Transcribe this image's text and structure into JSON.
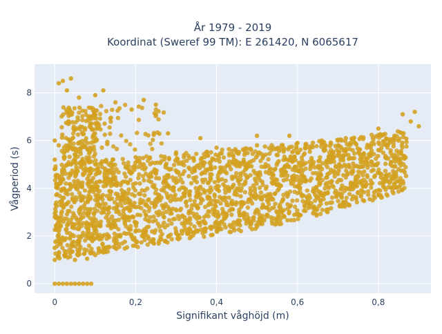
{
  "chart_data": {
    "type": "scatter",
    "title": [
      "År 1979 - 2019",
      "Koordinat (Sweref 99 TM): E 261420, N 6065617"
    ],
    "xlabel": "Signifikant våghöjd (m)",
    "ylabel": "Vågperiod (s)",
    "xlim": [
      -0.05,
      0.93
    ],
    "ylim": [
      -0.4,
      9.2
    ],
    "x_ticks": [
      0,
      0.2,
      0.4,
      0.6,
      0.8
    ],
    "x_tick_labels": [
      "0",
      "0,2",
      "0,4",
      "0,6",
      "0,8"
    ],
    "y_ticks": [
      0,
      2,
      4,
      6,
      8
    ],
    "y_tick_labels": [
      "0",
      "2",
      "4",
      "6",
      "8"
    ],
    "grid": true,
    "legend": "none",
    "marker_color": "#d4a120",
    "plot_background": "#e5ecf6",
    "series": [
      {
        "points": [
          [
            0.0,
            0.0
          ],
          [
            0.01,
            0.0
          ],
          [
            0.02,
            0.0
          ],
          [
            0.03,
            0.0
          ],
          [
            0.04,
            0.0
          ],
          [
            0.05,
            0.0
          ],
          [
            0.06,
            0.0
          ],
          [
            0.07,
            0.0
          ],
          [
            0.08,
            0.0
          ],
          [
            0.09,
            0.0
          ],
          [
            0.0,
            1.0
          ],
          [
            0.0,
            1.5
          ],
          [
            0.0,
            4.8
          ],
          [
            0.0,
            5.2
          ],
          [
            0.0,
            6.0
          ],
          [
            0.01,
            5.8
          ],
          [
            0.01,
            4.5
          ],
          [
            0.01,
            8.4
          ],
          [
            0.02,
            8.5
          ],
          [
            0.03,
            8.1
          ],
          [
            0.04,
            8.6
          ],
          [
            0.06,
            7.8
          ],
          [
            0.1,
            7.9
          ],
          [
            0.12,
            8.1
          ],
          [
            0.15,
            7.6
          ],
          [
            0.19,
            7.3
          ],
          [
            0.22,
            7.7
          ],
          [
            0.25,
            7.5
          ],
          [
            0.05,
            1.0
          ],
          [
            0.08,
            1.05
          ],
          [
            0.1,
            1.2
          ],
          [
            0.15,
            1.5
          ],
          [
            0.2,
            1.8
          ],
          [
            0.3,
            2.2
          ],
          [
            0.4,
            2.6
          ],
          [
            0.5,
            3.1
          ],
          [
            0.6,
            3.8
          ],
          [
            0.7,
            4.6
          ],
          [
            0.8,
            5.6
          ],
          [
            0.85,
            6.0
          ],
          [
            0.04,
            5.0
          ],
          [
            0.1,
            5.0
          ],
          [
            0.2,
            5.3
          ],
          [
            0.3,
            5.5
          ],
          [
            0.4,
            5.7
          ],
          [
            0.5,
            5.8
          ],
          [
            0.6,
            5.9
          ],
          [
            0.7,
            6.0
          ],
          [
            0.8,
            6.5
          ],
          [
            0.86,
            7.1
          ],
          [
            0.89,
            7.2
          ],
          [
            0.28,
            6.3
          ],
          [
            0.36,
            6.1
          ],
          [
            0.5,
            6.2
          ],
          [
            0.58,
            6.2
          ],
          [
            0.66,
            6.0
          ],
          [
            0.9,
            6.6
          ],
          [
            0.88,
            6.8
          ],
          [
            0.84,
            6.2
          ]
        ]
      }
    ]
  }
}
